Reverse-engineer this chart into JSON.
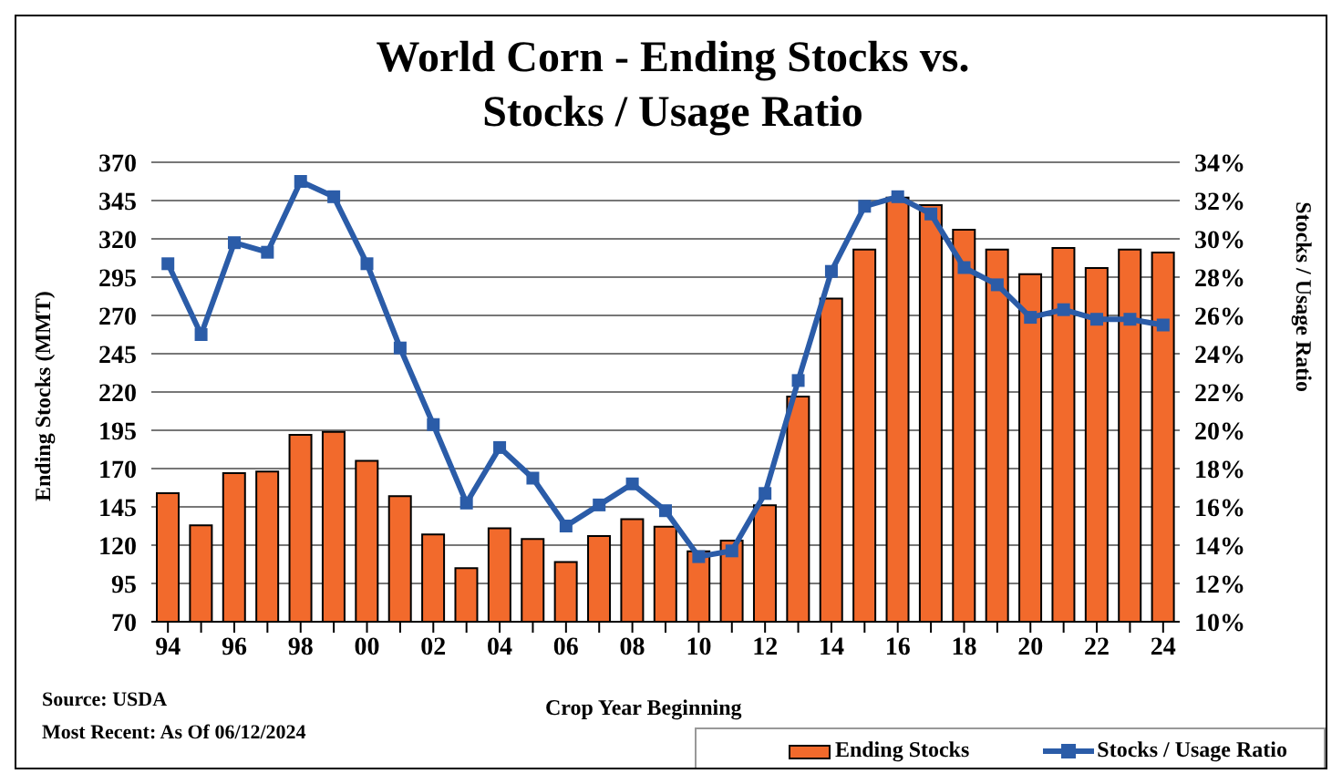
{
  "chart_data": {
    "type": "bar",
    "title": "World Corn - Ending Stocks vs. Stocks / Usage Ratio",
    "xlabel": "Crop Year Beginning",
    "ylabel": "Ending Stocks (MMT)",
    "y2label": "Stocks / Usage Ratio",
    "categories": [
      "94",
      null,
      "96",
      null,
      "98",
      null,
      "00",
      null,
      "02",
      null,
      "04",
      null,
      "06",
      null,
      "08",
      null,
      "10",
      null,
      "12",
      null,
      "14",
      null,
      "16",
      null,
      "18",
      null,
      "20",
      null,
      "22",
      null,
      "24"
    ],
    "series": [
      {
        "name": "Ending Stocks",
        "color": "#f26a2c",
        "values": [
          154,
          133,
          167,
          168,
          192,
          194,
          175,
          152,
          127,
          105,
          131,
          124,
          109,
          126,
          137,
          132,
          116,
          123,
          146,
          217,
          281,
          313,
          347,
          342,
          326,
          313,
          297,
          314,
          301,
          313,
          311
        ]
      },
      {
        "name": "Stocks / Usage Ratio",
        "type": "line",
        "axis": "y2",
        "color": "#2b5ca8",
        "values": [
          28.7,
          25.0,
          29.8,
          29.3,
          33.0,
          32.2,
          28.7,
          24.3,
          20.3,
          16.2,
          19.1,
          17.5,
          15.0,
          16.1,
          17.2,
          15.8,
          13.4,
          13.7,
          16.7,
          22.6,
          28.3,
          31.7,
          32.2,
          31.3,
          28.5,
          27.6,
          25.9,
          26.3,
          25.8,
          25.8,
          25.5
        ]
      }
    ],
    "ylim": [
      70,
      370
    ],
    "yticks": [
      70,
      95,
      120,
      145,
      170,
      195,
      220,
      245,
      270,
      295,
      320,
      345,
      370
    ],
    "y2lim": [
      10,
      34
    ],
    "y2ticks": [
      {
        "value": 10,
        "label": "10%"
      },
      {
        "value": 12,
        "label": "12%"
      },
      {
        "value": 14,
        "label": "14%"
      },
      {
        "value": 16,
        "label": "16%"
      },
      {
        "value": 18,
        "label": "18%"
      },
      {
        "value": 20,
        "label": "20%"
      },
      {
        "value": 22,
        "label": "22%"
      },
      {
        "value": 24,
        "label": "24%"
      },
      {
        "value": 26,
        "label": "26%"
      },
      {
        "value": 28,
        "label": "28%"
      },
      {
        "value": 30,
        "label": "30%"
      },
      {
        "value": 32,
        "label": "32%"
      },
      {
        "value": 34,
        "label": "34%"
      }
    ],
    "grid": "y",
    "legend": "bottom right",
    "marker": "square",
    "annotations": [
      "Source: USDA",
      "Most Recent: As Of 06/12/2024"
    ]
  }
}
